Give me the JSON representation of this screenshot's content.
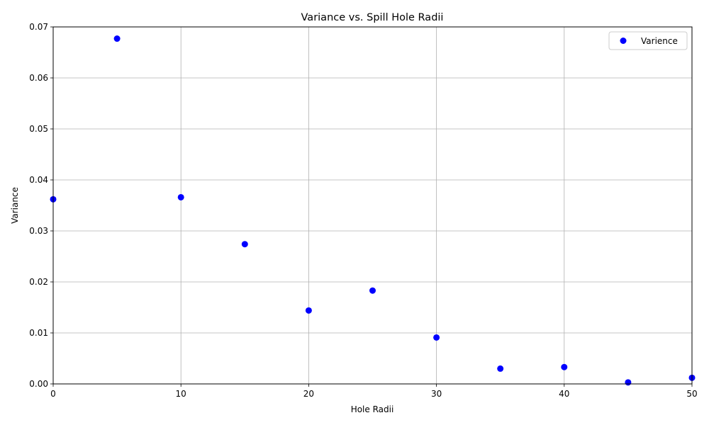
{
  "chart_data": {
    "type": "scatter",
    "title": "Variance vs. Spill Hole Radii",
    "xlabel": "Hole Radii",
    "ylabel": "Variance",
    "xlim": [
      0,
      50
    ],
    "ylim": [
      0,
      0.07
    ],
    "x_ticks": [
      0,
      10,
      20,
      30,
      40,
      50
    ],
    "y_ticks": [
      0.0,
      0.01,
      0.02,
      0.03,
      0.04,
      0.05,
      0.06,
      0.07
    ],
    "x_tick_labels": [
      "0",
      "10",
      "20",
      "30",
      "40",
      "50"
    ],
    "y_tick_labels": [
      "0.00",
      "0.01",
      "0.02",
      "0.03",
      "0.04",
      "0.05",
      "0.06",
      "0.07"
    ],
    "grid": true,
    "legend_position": "top-right",
    "series": [
      {
        "name": "Varience",
        "color": "#0000ff",
        "x": [
          0,
          5,
          10,
          15,
          20,
          25,
          30,
          35,
          40,
          45,
          50
        ],
        "y": [
          0.0362,
          0.0677,
          0.0366,
          0.0274,
          0.0144,
          0.0183,
          0.0091,
          0.003,
          0.0033,
          0.0003,
          0.0012
        ]
      }
    ]
  }
}
